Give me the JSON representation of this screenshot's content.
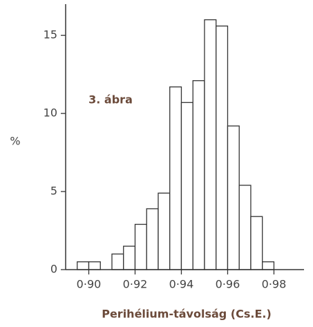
{
  "chart_data": {
    "type": "histogram",
    "annotation": "3. ábra",
    "xlabel": "Perihélium-távolság (Cs.E.)",
    "ylabel": "%",
    "bins": [
      0.895,
      0.9,
      0.905,
      0.91,
      0.915,
      0.92,
      0.925,
      0.93,
      0.935,
      0.94,
      0.945,
      0.95,
      0.955,
      0.96,
      0.965,
      0.97,
      0.975,
      0.98
    ],
    "values": [
      0.5,
      0.5,
      0,
      1,
      1.5,
      2.9,
      3.9,
      4.9,
      11.7,
      10.7,
      12.1,
      16,
      15.6,
      9.2,
      5.4,
      3.4,
      0.5
    ],
    "color": "#ffffff",
    "edgecolor": "#333333",
    "xlim": [
      0.89,
      0.993
    ],
    "ylim": [
      0,
      17
    ],
    "xticks": [
      {
        "value": 0.9,
        "label": "0·90"
      },
      {
        "value": 0.92,
        "label": "0·92"
      },
      {
        "value": 0.94,
        "label": "0·94"
      },
      {
        "value": 0.96,
        "label": "0·96"
      },
      {
        "value": 0.98,
        "label": "0·98"
      }
    ],
    "yticks": [
      0,
      5,
      10,
      15
    ]
  }
}
